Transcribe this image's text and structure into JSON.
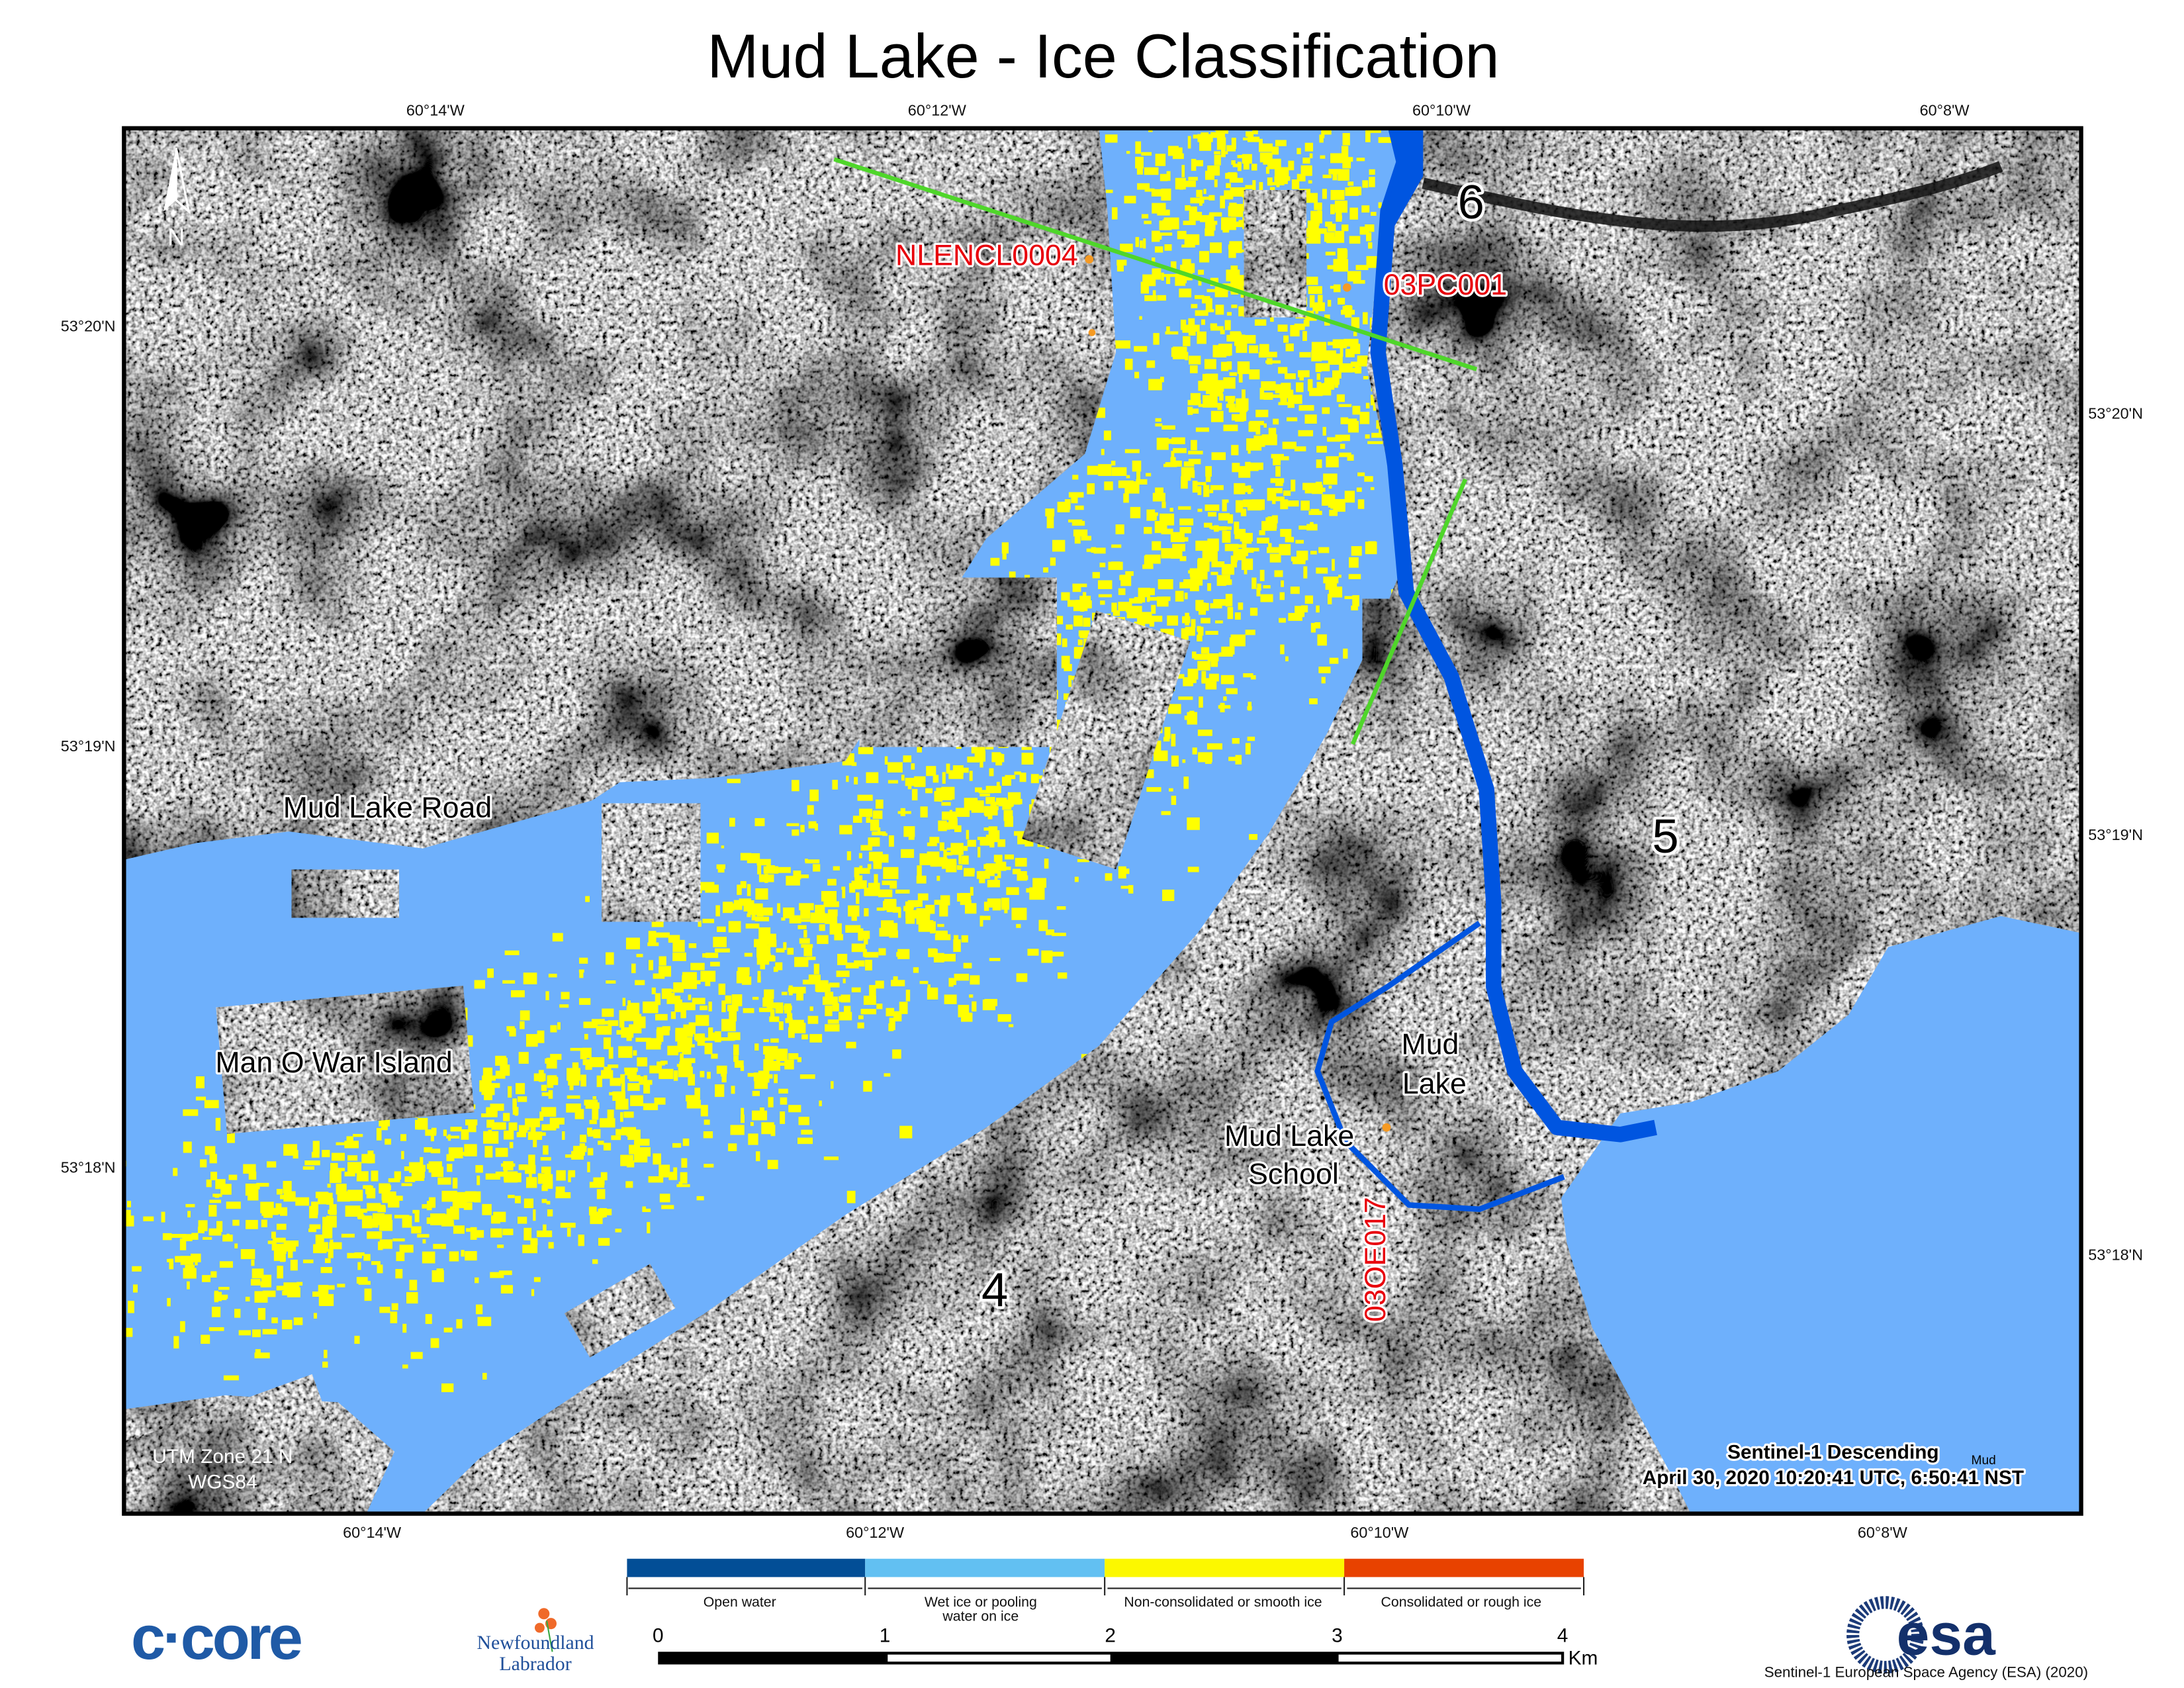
{
  "title": "Mud Lake - Ice Classification",
  "graticule": {
    "top_lon": [
      "60°14'W",
      "60°12'W",
      "60°10'W",
      "60°8'W"
    ],
    "bottom_lon": [
      "60°14'W",
      "60°12'W",
      "60°10'W",
      "60°8'W"
    ],
    "left_lat": [
      "53°20'N",
      "53°19'N",
      "53°18'N"
    ],
    "right_lat": [
      "53°20'N",
      "53°19'N",
      "53°18'N"
    ]
  },
  "map": {
    "north_arrow": "N",
    "zone_labels": [
      "6",
      "5",
      "4"
    ],
    "place_labels": {
      "mud_lake_road": "Mud Lake Road",
      "man_o_war_island": "Man O War Island",
      "mud_lake": [
        "Mud",
        "Lake"
      ],
      "mud_lake_school": [
        "Mud Lake",
        "School"
      ]
    },
    "stations": [
      "NLENCL0004",
      "03PC001",
      "03OE017"
    ],
    "projection": [
      "UTM Zone 21 N",
      "WGS84"
    ],
    "acquisition": {
      "line1": "Sentinel-1 Descending",
      "line2": "April 30, 2020 10:20:41 UTC, 6:50:41 NST",
      "small": "Mud"
    }
  },
  "legend": {
    "classes": [
      {
        "label": "Open water",
        "color": "#024e96"
      },
      {
        "label": "Wet ice or pooling water on ice",
        "label_lines": [
          "Wet ice or pooling",
          "water on ice"
        ],
        "color": "#62c0f2"
      },
      {
        "label": "Non-consolidated or smooth ice",
        "color": "#fcf800"
      },
      {
        "label": "Consolidated or rough ice",
        "color": "#e84200"
      }
    ]
  },
  "scale_bar": {
    "ticks": [
      "0",
      "1",
      "2",
      "3",
      "4"
    ],
    "unit": "Km"
  },
  "map_colors": {
    "wet_ice": "#6eb0fc",
    "open_water": "#0055e0",
    "smooth_ice": "#ffff00",
    "transect": "#4fd62a",
    "station": "#f59a23"
  },
  "logos": {
    "ccore": "c·core",
    "nl": [
      "Newfoundland",
      "Labrador"
    ],
    "esa": "esa"
  },
  "credit": "Sentinel-1 European Space Agency (ESA) (2020)"
}
